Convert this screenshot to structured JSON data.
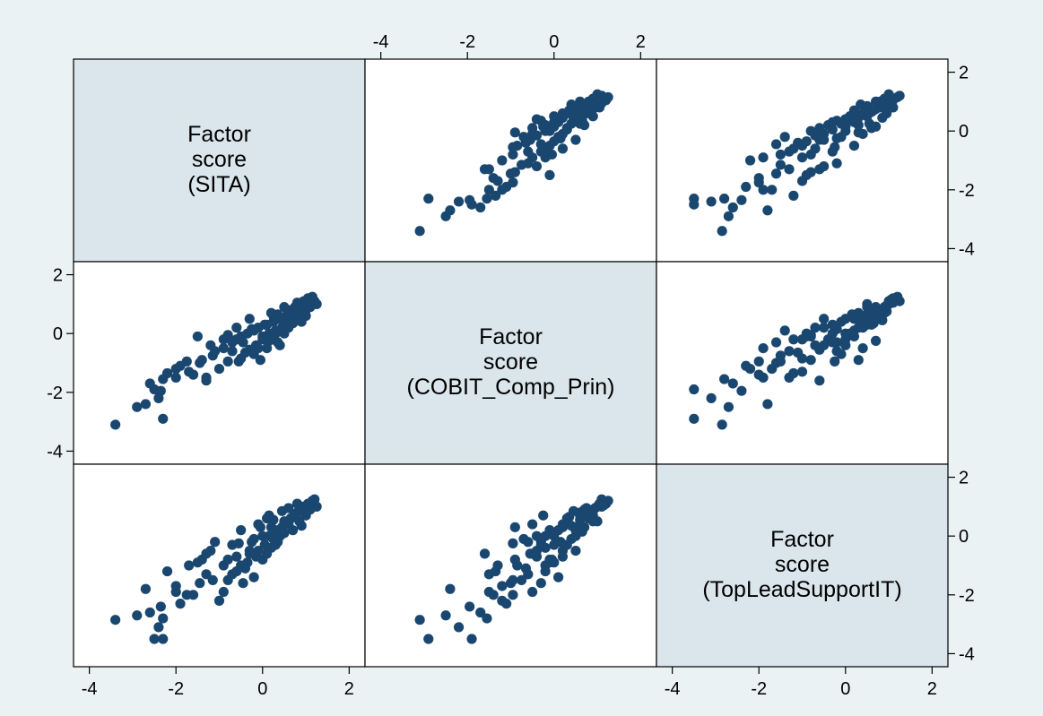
{
  "colors": {
    "outer_background": "#eaf2f3",
    "plot_background": "#ffffff",
    "diagonal_background": "#dae6ec",
    "marker": "#1a476f",
    "frame": "#000000"
  },
  "chart_data": {
    "type": "scatter-matrix",
    "variables": [
      {
        "label_lines": [
          "Factor",
          "score",
          "(SITA)"
        ]
      },
      {
        "label_lines": [
          "Factor",
          "score",
          "(COBIT_Comp_Prin)"
        ]
      },
      {
        "label_lines": [
          "Factor",
          "score",
          "(TopLeadSupportIT)"
        ]
      }
    ],
    "axis_range": [
      -4.2,
      2.2
    ],
    "ticks": [
      -4,
      -2,
      0,
      2
    ],
    "tick_labels": [
      "-4",
      "-2",
      "0",
      "2"
    ],
    "marker": "filled-circle",
    "grid": false,
    "points": [
      [
        -3.4,
        -3.1,
        -2.85
      ],
      [
        -2.9,
        -2.5,
        -2.7
      ],
      [
        -2.6,
        -1.7,
        -2.6
      ],
      [
        -2.4,
        -2.2,
        -3.1
      ],
      [
        -2.3,
        -2.9,
        -3.5
      ],
      [
        -2.5,
        -1.9,
        -3.5
      ],
      [
        -2.7,
        -2.4,
        -1.8
      ],
      [
        -2.35,
        -1.95,
        -2.4
      ],
      [
        -2.3,
        -1.55,
        -2.8
      ],
      [
        -2.0,
        -1.5,
        -1.9
      ],
      [
        -1.9,
        -1.1,
        -2.3
      ],
      [
        -1.75,
        -0.95,
        -2.0
      ],
      [
        -1.6,
        -1.4,
        -2.0
      ],
      [
        -1.45,
        -1.0,
        -1.6
      ],
      [
        -1.3,
        -1.5,
        -1.3
      ],
      [
        -1.15,
        -0.75,
        -1.5
      ],
      [
        -1.0,
        -1.2,
        -2.2
      ],
      [
        -0.9,
        -0.5,
        -1.9
      ],
      [
        -0.8,
        -0.95,
        -1.5
      ],
      [
        -0.7,
        -0.6,
        -1.3
      ],
      [
        -0.6,
        -0.2,
        -1.2
      ],
      [
        -0.5,
        -0.85,
        -1.0
      ],
      [
        -0.45,
        -0.3,
        -1.6
      ],
      [
        -0.35,
        0.0,
        -0.9
      ],
      [
        -0.3,
        -0.55,
        -0.6
      ],
      [
        -0.2,
        0.1,
        -1.4
      ],
      [
        -0.15,
        -0.4,
        -0.7
      ],
      [
        -0.1,
        0.2,
        -0.5
      ],
      [
        0.0,
        -0.1,
        -0.8
      ],
      [
        0.05,
        0.3,
        -0.3
      ],
      [
        0.1,
        -0.5,
        -0.6
      ],
      [
        0.15,
        0.0,
        0.0
      ],
      [
        0.2,
        -0.2,
        -0.4
      ],
      [
        0.25,
        0.4,
        -0.1
      ],
      [
        0.3,
        0.1,
        0.2
      ],
      [
        0.35,
        -0.3,
        -0.2
      ],
      [
        0.4,
        0.5,
        0.0
      ],
      [
        0.45,
        0.2,
        0.3
      ],
      [
        0.5,
        0.0,
        0.1
      ],
      [
        0.55,
        0.6,
        0.4
      ],
      [
        0.6,
        0.3,
        0.5
      ],
      [
        0.65,
        0.8,
        0.6
      ],
      [
        0.7,
        0.5,
        0.2
      ],
      [
        0.75,
        0.9,
        0.7
      ],
      [
        0.8,
        0.6,
        0.8
      ],
      [
        0.85,
        1.0,
        0.5
      ],
      [
        0.9,
        0.7,
        0.9
      ],
      [
        0.95,
        1.1,
        1.0
      ],
      [
        1.0,
        0.8,
        0.8
      ],
      [
        1.05,
        1.2,
        1.1
      ],
      [
        1.1,
        0.9,
        0.9
      ],
      [
        1.15,
        1.25,
        1.2
      ],
      [
        1.2,
        1.1,
        1.25
      ],
      [
        1.25,
        1.0,
        1.0
      ],
      [
        0.0,
        -0.2,
        0.0
      ],
      [
        -0.7,
        -0.3,
        -0.3
      ],
      [
        -0.5,
        -0.1,
        0.2
      ],
      [
        -1.1,
        -0.6,
        -0.2
      ],
      [
        -1.4,
        -0.9,
        -0.8
      ],
      [
        -2.0,
        -1.2,
        -1.7
      ],
      [
        -0.3,
        0.5,
        -0.5
      ],
      [
        0.2,
        0.7,
        0.3
      ],
      [
        0.6,
        0.2,
        0.4
      ],
      [
        0.4,
        -0.4,
        0.0
      ],
      [
        -0.2,
        -0.7,
        -0.1
      ],
      [
        0.1,
        0.3,
        0.6
      ],
      [
        0.5,
        0.9,
        0.5
      ],
      [
        0.8,
        1.05,
        1.1
      ],
      [
        1.0,
        0.6,
        0.7
      ],
      [
        0.3,
        0.0,
        -0.3
      ],
      [
        -0.6,
        0.2,
        -0.7
      ],
      [
        -0.9,
        -0.2,
        -1.0
      ],
      [
        -1.2,
        -0.4,
        -0.5
      ],
      [
        -0.1,
        -0.5,
        0.4
      ],
      [
        0.35,
        0.65,
        0.15
      ],
      [
        0.7,
        0.35,
        0.65
      ],
      [
        0.9,
        0.95,
        0.95
      ],
      [
        -0.4,
        -0.65,
        -1.1
      ],
      [
        0.15,
        -0.25,
        0.7
      ],
      [
        -0.8,
        -0.05,
        -0.8
      ],
      [
        -1.5,
        -0.1,
        -0.9
      ],
      [
        -2.2,
        -1.35,
        -1.2
      ],
      [
        -0.25,
        0.15,
        -0.2
      ],
      [
        0.45,
        0.45,
        0.85
      ],
      [
        1.1,
        1.15,
        1.05
      ],
      [
        0.6,
        0.75,
        0.95
      ],
      [
        0.25,
        0.6,
        0.55
      ],
      [
        0.9,
        0.4,
        0.35
      ],
      [
        -0.05,
        -0.9,
        0.3
      ],
      [
        -0.55,
        -0.95,
        -0.25
      ],
      [
        -1.3,
        -1.6,
        -0.6
      ],
      [
        -1.7,
        -1.3,
        -1.0
      ]
    ]
  }
}
